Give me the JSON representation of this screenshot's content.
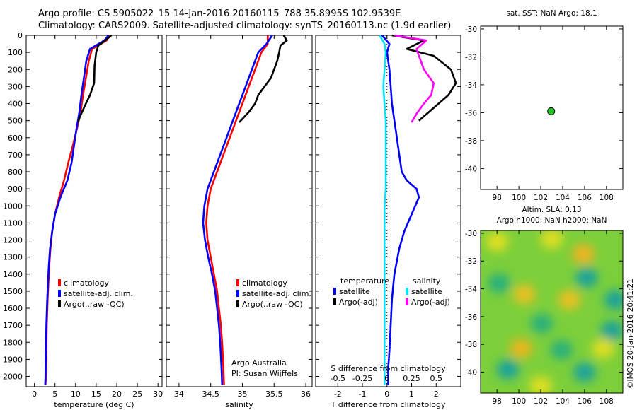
{
  "header": {
    "line1": "Argo profile: CS 5905022_15 14-Jan-2016 20160115_788 35.8995S 102.9539E",
    "line2": "Climatology: CARS2009. Satellite-adjusted climatology: synTS_20160113.nc (1.9d earlier)"
  },
  "colors": {
    "climatology": "#ff0000",
    "satellite": "#0000ff",
    "argo": "#000000",
    "s_sat": "#00e5ff",
    "s_argo": "#ff00ff",
    "marker": "#22cc22"
  },
  "chart_data": [
    {
      "id": "temperature",
      "type": "line",
      "xlabel": "temperature (deg C)",
      "xlim": [
        -2,
        31
      ],
      "ylim": [
        2060,
        0
      ],
      "xticks": [
        "0",
        "5",
        "10",
        "15",
        "20",
        "25",
        "30"
      ],
      "xtick_values": [
        0,
        5,
        10,
        15,
        20,
        25,
        30
      ],
      "yticks": [
        "0",
        "100",
        "200",
        "300",
        "400",
        "500",
        "600",
        "700",
        "800",
        "900",
        "1000",
        "1100",
        "1200",
        "1300",
        "1400",
        "1500",
        "1600",
        "1700",
        "1800",
        "1900",
        "2000"
      ],
      "ytick_values": [
        0,
        100,
        200,
        300,
        400,
        500,
        600,
        700,
        800,
        900,
        1000,
        1100,
        1200,
        1300,
        1400,
        1500,
        1600,
        1700,
        1800,
        1900,
        2000
      ],
      "legend": [
        "climatology",
        "satellite-adj. clim.",
        "Argo(..raw -QC)"
      ],
      "series": [
        {
          "name": "climatology",
          "color": "#ff0000",
          "x": [
            18.3,
            17.5,
            14.0,
            13.2,
            12.5,
            11.8,
            11.2,
            10.3,
            9.3,
            8.2,
            7.2,
            6.0,
            5.0,
            4.3,
            3.9,
            3.6,
            3.4,
            3.2,
            3.0,
            2.9,
            2.8,
            2.7
          ],
          "y": [
            0,
            30,
            80,
            150,
            250,
            350,
            450,
            550,
            650,
            750,
            850,
            950,
            1050,
            1150,
            1250,
            1350,
            1450,
            1550,
            1700,
            1850,
            2000,
            2050
          ]
        },
        {
          "name": "satellite-adj. clim.",
          "color": "#0000ff",
          "x": [
            18.0,
            17.0,
            13.5,
            12.6,
            12.0,
            11.4,
            10.9,
            10.2,
            9.6,
            9.0,
            8.0,
            6.3,
            5.0,
            4.3,
            3.8,
            3.5,
            3.3,
            3.1,
            2.9,
            2.8,
            2.7,
            2.6
          ],
          "y": [
            0,
            30,
            80,
            150,
            250,
            350,
            450,
            550,
            650,
            750,
            850,
            950,
            1050,
            1150,
            1250,
            1350,
            1450,
            1550,
            1700,
            1850,
            2000,
            2050
          ]
        },
        {
          "name": "Argo(..raw -QC)",
          "color": "#000000",
          "x": [
            18.7,
            17.2,
            15.5,
            15.0,
            14.6,
            14.5,
            13.5,
            12.5,
            11.0,
            10.6
          ],
          "y": [
            0,
            30,
            60,
            100,
            180,
            280,
            350,
            400,
            480,
            510
          ]
        }
      ]
    },
    {
      "id": "salinity",
      "type": "line",
      "xlabel": "salinity",
      "xlim": [
        33.8,
        36.1
      ],
      "ylim": [
        2060,
        0
      ],
      "xticks": [
        "34",
        "34.5",
        "35",
        "35.5",
        "36"
      ],
      "xtick_values": [
        34,
        34.5,
        35,
        35.5,
        36
      ],
      "legend": [
        "climatology",
        "satellite-adj. clim.",
        "Argo(..raw -QC)"
      ],
      "annotation": [
        "Argo Australia",
        "PI: Susan Wijffels"
      ],
      "series": [
        {
          "name": "climatology",
          "color": "#ff0000",
          "x": [
            35.4,
            35.4,
            35.3,
            35.2,
            35.1,
            35.0,
            34.9,
            34.8,
            34.7,
            34.6,
            34.5,
            34.45,
            34.43,
            34.45,
            34.5,
            34.55,
            34.6,
            34.63,
            34.66,
            34.68,
            34.7,
            34.71
          ],
          "y": [
            0,
            50,
            100,
            200,
            300,
            400,
            500,
            600,
            700,
            800,
            900,
            1000,
            1100,
            1200,
            1300,
            1400,
            1500,
            1600,
            1700,
            1800,
            1950,
            2050
          ]
        },
        {
          "name": "satellite-adj. clim.",
          "color": "#0000ff",
          "x": [
            35.47,
            35.38,
            35.25,
            35.15,
            35.05,
            34.95,
            34.85,
            34.75,
            34.65,
            34.55,
            34.45,
            34.4,
            34.38,
            34.41,
            34.46,
            34.52,
            34.57,
            34.6,
            34.63,
            34.65,
            34.67,
            34.68
          ],
          "y": [
            0,
            50,
            100,
            200,
            300,
            400,
            500,
            600,
            700,
            800,
            900,
            1000,
            1100,
            1200,
            1300,
            1400,
            1500,
            1600,
            1700,
            1800,
            1950,
            2050
          ]
        },
        {
          "name": "Argo(..raw -QC)",
          "color": "#000000",
          "x": [
            35.65,
            35.7,
            35.6,
            35.58,
            35.55,
            35.45,
            35.35,
            35.25,
            35.2,
            35.1,
            34.95
          ],
          "y": [
            0,
            30,
            60,
            100,
            150,
            250,
            300,
            350,
            400,
            450,
            510
          ]
        }
      ]
    },
    {
      "id": "difference",
      "type": "line",
      "xlabel": "T difference from climatology",
      "xlabel2": "S difference from climatology",
      "xlim": [
        -2.9,
        3.0
      ],
      "ylim": [
        2060,
        0
      ],
      "xticks": [
        "-2",
        "-1",
        "0",
        "1",
        "2"
      ],
      "xtick_values": [
        -2,
        -1,
        0,
        1,
        2
      ],
      "xticks_top": [
        "-0.5",
        "-0.25",
        "0",
        "0.25",
        "0.5"
      ],
      "xticks_top_values": [
        -2,
        -1,
        0,
        1,
        2
      ],
      "legend": {
        "temperature": "temperature",
        "salinity": "salinity",
        "sat": "satellite",
        "argo": "Argo(-adj)"
      },
      "series": [
        {
          "name": "T satellite",
          "color": "#0000ff",
          "x": [
            -0.2,
            0.1,
            0.0,
            0.1,
            0.15,
            0.2,
            0.3,
            0.4,
            0.5,
            0.6,
            0.8,
            1.2,
            1.3,
            1.0,
            0.7,
            0.5,
            0.3,
            0.2,
            0.15,
            0.1,
            0.05,
            0.05
          ],
          "y": [
            0,
            50,
            100,
            200,
            300,
            400,
            500,
            600,
            700,
            800,
            850,
            900,
            950,
            1050,
            1150,
            1250,
            1400,
            1550,
            1700,
            1850,
            1950,
            2050
          ]
        },
        {
          "name": "T argo",
          "color": "#000000",
          "x": [
            0.2,
            1.5,
            0.8,
            1.9,
            2.6,
            2.8,
            2.5,
            2.1,
            1.7,
            1.3
          ],
          "y": [
            0,
            30,
            80,
            120,
            200,
            280,
            350,
            400,
            450,
            500
          ]
        },
        {
          "name": "S satellite",
          "color": "#00e5ff",
          "x": [
            -0.3,
            -0.1,
            -0.05,
            -0.1,
            -0.15,
            -0.1,
            -0.05,
            -0.05,
            -0.05,
            -0.05,
            -0.05,
            -0.1,
            -0.1,
            -0.1,
            -0.1,
            -0.1,
            -0.1,
            -0.1,
            -0.1,
            -0.1,
            -0.1,
            -0.1
          ],
          "y": [
            0,
            50,
            100,
            200,
            300,
            400,
            500,
            600,
            700,
            800,
            900,
            1000,
            1100,
            1200,
            1300,
            1400,
            1500,
            1600,
            1700,
            1800,
            1950,
            2050
          ]
        },
        {
          "name": "S argo",
          "color": "#ff00ff",
          "x": [
            0.3,
            1.6,
            1.2,
            1.3,
            1.5,
            1.9,
            1.8,
            1.5,
            1.2,
            1.0
          ],
          "y": [
            0,
            30,
            80,
            120,
            200,
            280,
            350,
            400,
            460,
            510
          ]
        }
      ]
    },
    {
      "id": "sst",
      "type": "scatter",
      "title": "sat. SST: NaN Argo: 18.1",
      "xlim": [
        96.5,
        109.5
      ],
      "ylim": [
        -41.5,
        -29.8
      ],
      "xticks": [
        "98",
        "100",
        "102",
        "104",
        "106",
        "108"
      ],
      "xtick_values": [
        98,
        100,
        102,
        104,
        106,
        108
      ],
      "yticks": [
        "-30",
        "-32",
        "-34",
        "-36",
        "-38",
        "-40"
      ],
      "ytick_values": [
        -30,
        -32,
        -34,
        -36,
        -38,
        -40
      ],
      "points": [
        {
          "x": 102.95,
          "y": -35.9
        }
      ]
    },
    {
      "id": "sla",
      "type": "heatmap",
      "title1": "Altim. SLA: 0.13",
      "title2": "Argo h1000: NaN h2000: NaN",
      "xlim": [
        96.5,
        109.5
      ],
      "ylim": [
        -41.5,
        -29.8
      ],
      "xticks": [
        "98",
        "100",
        "102",
        "104",
        "106",
        "108"
      ],
      "xtick_values": [
        98,
        100,
        102,
        104,
        106,
        108
      ],
      "yticks": [
        "-30",
        "-32",
        "-34",
        "-36",
        "-38",
        "-40"
      ],
      "ytick_values": [
        -30,
        -32,
        -34,
        -36,
        -38,
        -40
      ],
      "credit": "©IMOS 20-Jan-2016 20:41:21",
      "blobs": [
        {
          "x": 106.2,
          "y": -33.2,
          "c": "#1aa39a"
        },
        {
          "x": 108.8,
          "y": -34.8,
          "c": "#1aa39a"
        },
        {
          "x": 108.5,
          "y": -37.0,
          "c": "#1aa39a"
        },
        {
          "x": 99.0,
          "y": -39.8,
          "c": "#1aa39a"
        },
        {
          "x": 106.0,
          "y": -40.0,
          "c": "#1aa39a"
        },
        {
          "x": 98.2,
          "y": -33.6,
          "c": "#2cb07a"
        },
        {
          "x": 103.9,
          "y": -38.4,
          "c": "#2cb07a"
        },
        {
          "x": 103.0,
          "y": -30.4,
          "c": "#dede20"
        },
        {
          "x": 105.9,
          "y": -31.5,
          "c": "#eeb320"
        },
        {
          "x": 100.5,
          "y": -34.4,
          "c": "#e8c020"
        },
        {
          "x": 104.6,
          "y": -34.8,
          "c": "#e8c020"
        },
        {
          "x": 100.2,
          "y": -38.3,
          "c": "#e9b61a"
        },
        {
          "x": 98.0,
          "y": -30.6,
          "c": "#dede20"
        },
        {
          "x": 107.7,
          "y": -38.3,
          "c": "#dede20"
        },
        {
          "x": 102.0,
          "y": -41.0,
          "c": "#dede20"
        },
        {
          "x": 102.1,
          "y": -36.5,
          "c": "#2cb07a"
        }
      ]
    }
  ]
}
